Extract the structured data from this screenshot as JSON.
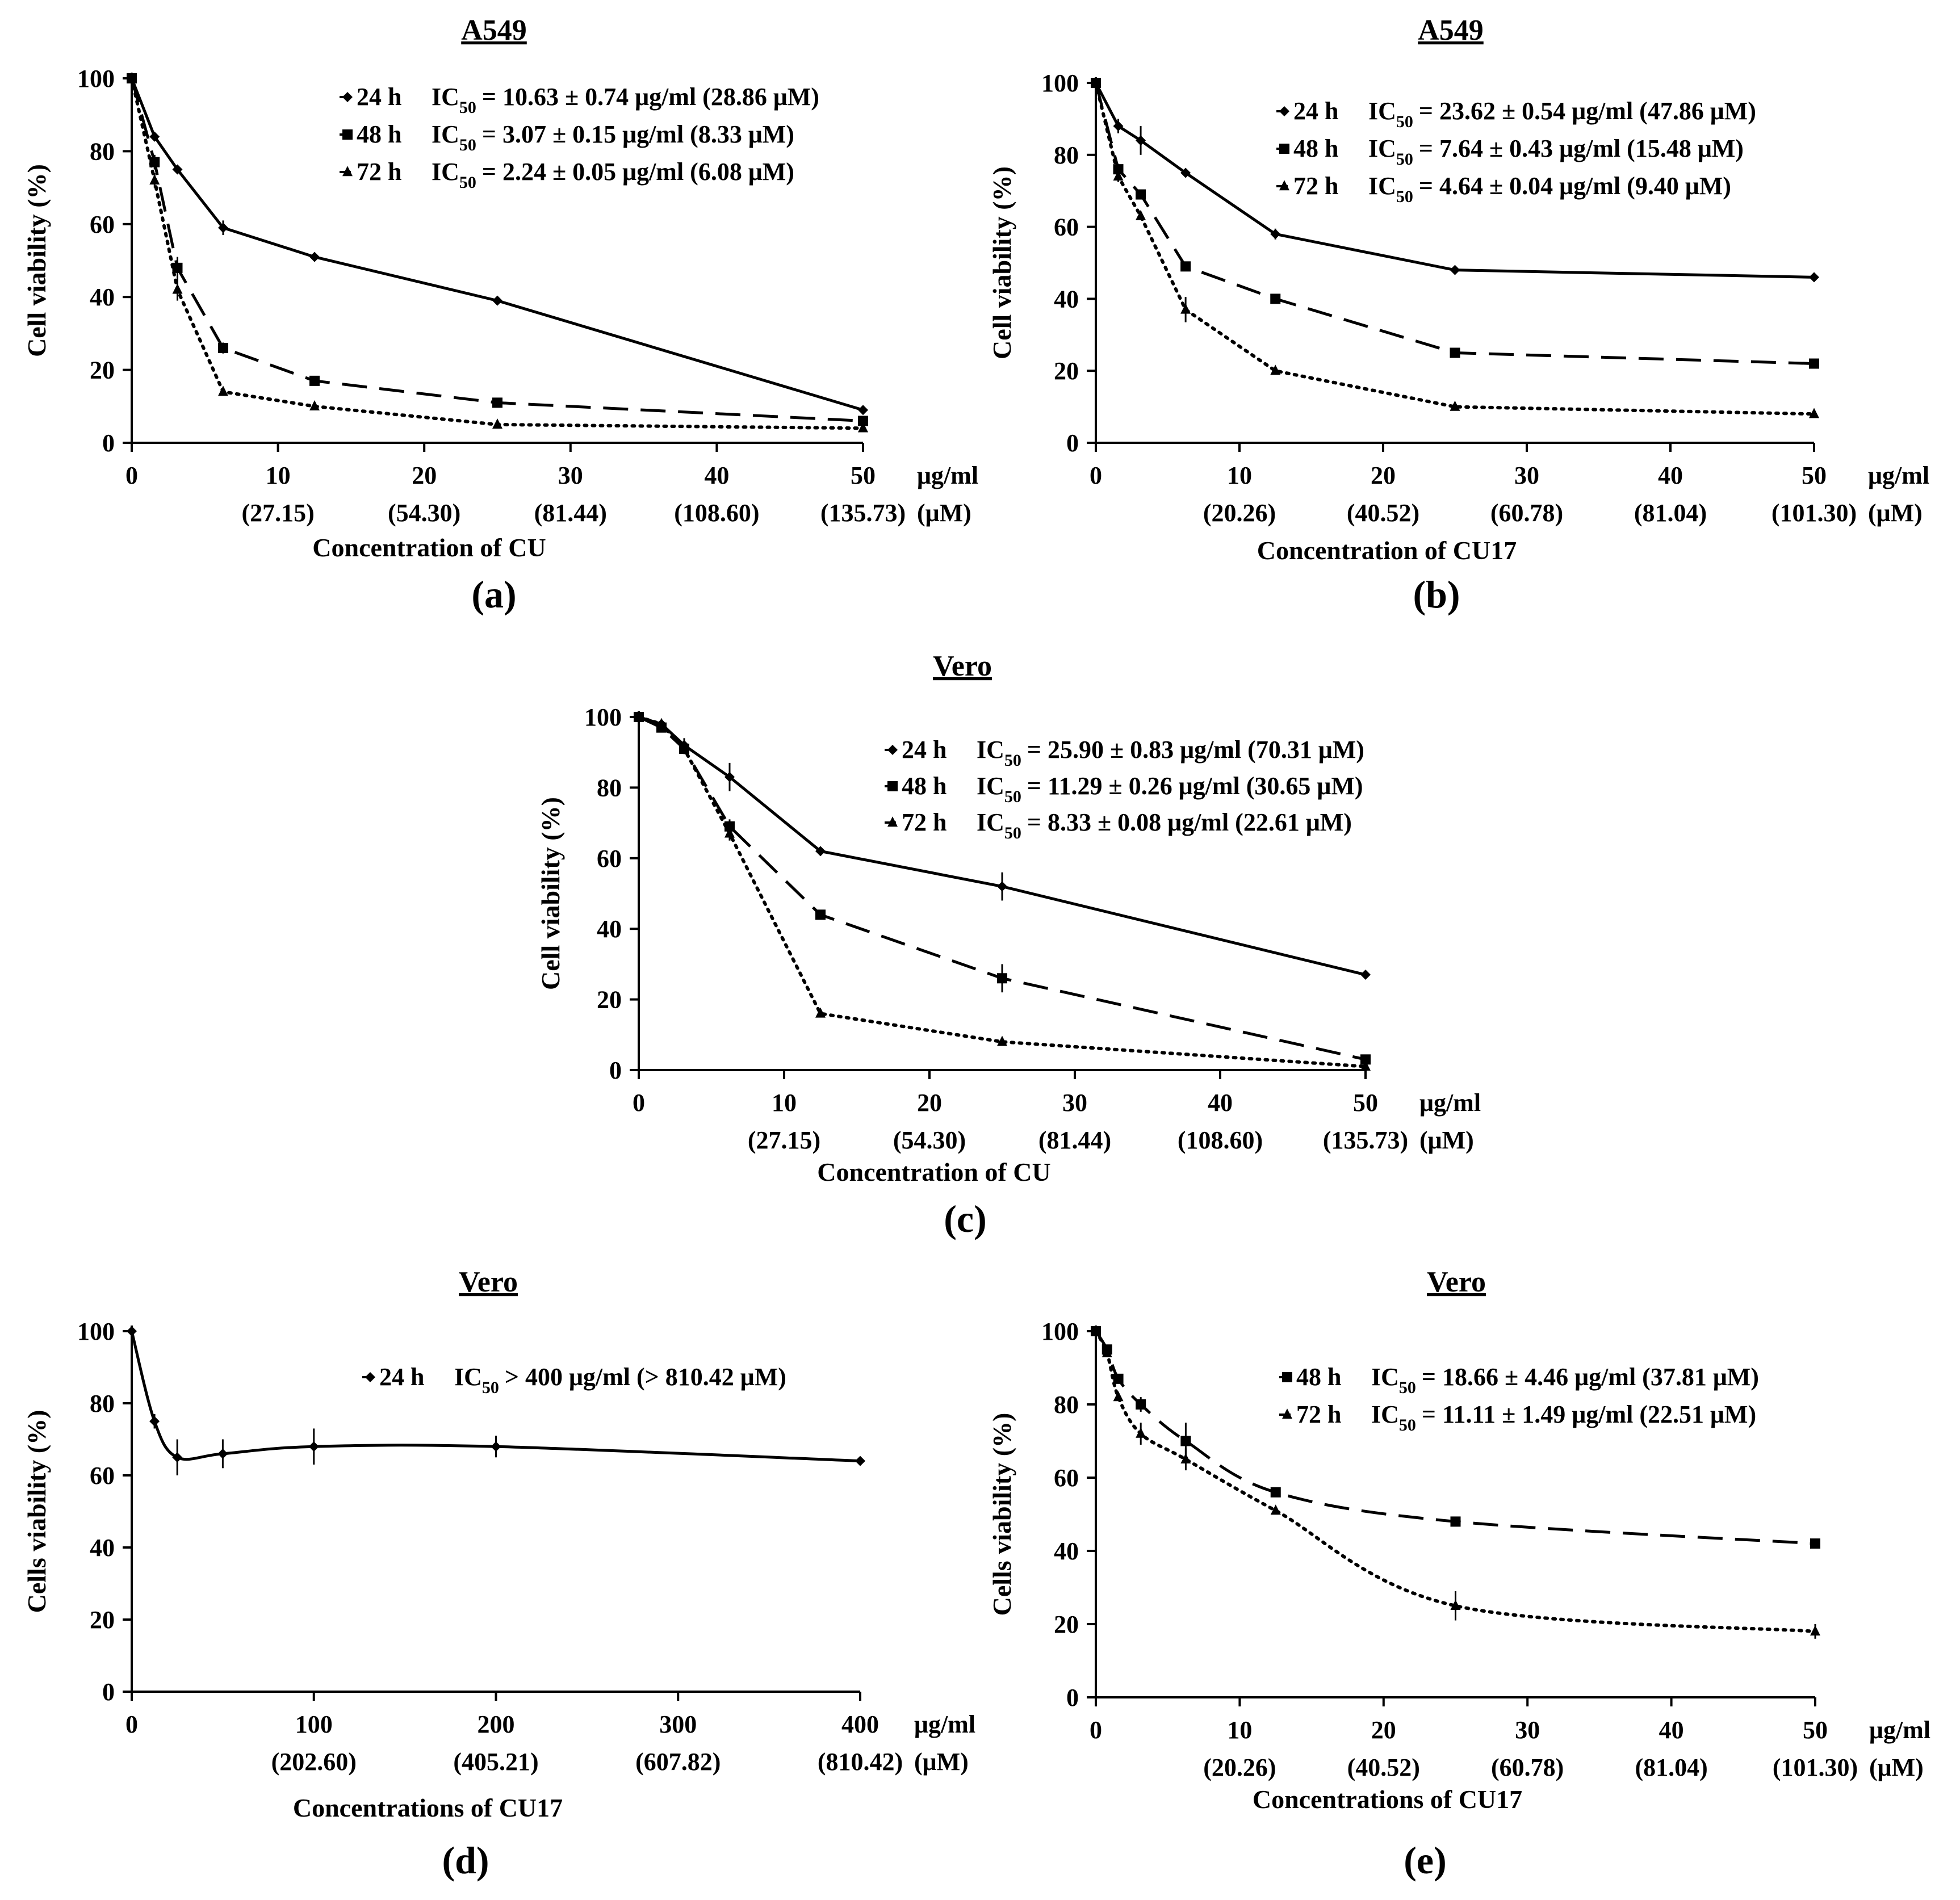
{
  "figure": "Cell viability dose-response panels",
  "chart_data": [
    {
      "id": "a",
      "type": "line",
      "panel_label": "(a)",
      "title": "A549",
      "ylabel": "Cell  viability (%)",
      "xlabel": "Concentration of CU",
      "ylim": [
        0,
        100
      ],
      "xlim": [
        0,
        50
      ],
      "yticks": [
        0,
        20,
        40,
        60,
        80,
        100
      ],
      "xticks": [
        0,
        10,
        20,
        30,
        40,
        50
      ],
      "x_unit": "μg/ml",
      "x_unit2": "(μM)",
      "xticks_molar": [
        {
          "x": 10,
          "label": "(27.15)"
        },
        {
          "x": 20,
          "label": "(54.30)"
        },
        {
          "x": 30,
          "label": "(81.44)"
        },
        {
          "x": 40,
          "label": "(108.60)"
        },
        {
          "x": 50,
          "label": "(135.73)"
        }
      ],
      "series": [
        {
          "name": "24 h",
          "ic50_pre": "IC",
          "ic50_sub": "50",
          "ic50_text": "= 10.63 ± 0.74 μg/ml (28.86 μM)",
          "style": "solid",
          "marker": "diamond",
          "x": [
            0,
            1.5625,
            3.125,
            6.25,
            12.5,
            25,
            50
          ],
          "y": [
            100,
            84,
            75,
            59,
            51,
            39,
            9
          ],
          "err": [
            0,
            1,
            1,
            2,
            1,
            0.5,
            0.5
          ]
        },
        {
          "name": "48 h",
          "ic50_pre": "IC",
          "ic50_sub": "50",
          "ic50_text": "= 3.07 ± 0.15 μg/ml   (8.33 μM)",
          "style": "dashed",
          "marker": "square",
          "x": [
            0,
            1.5625,
            3.125,
            6.25,
            12.5,
            25,
            50
          ],
          "y": [
            100,
            77,
            48,
            26,
            17,
            11,
            6
          ],
          "err": [
            0,
            2,
            3,
            1.5,
            0.5,
            0.5,
            0.5
          ]
        },
        {
          "name": "72 h",
          "ic50_pre": "IC",
          "ic50_sub": "50",
          "ic50_text": "= 2.24 ± 0.05 μg/ml   (6.08 μM)",
          "style": "dotted",
          "marker": "triangle",
          "x": [
            0,
            1.5625,
            3.125,
            6.25,
            12.5,
            25,
            50
          ],
          "y": [
            100,
            72,
            42,
            14,
            10,
            5,
            4
          ],
          "err": [
            0,
            2,
            3,
            1,
            0.5,
            0.5,
            0.5
          ]
        }
      ]
    },
    {
      "id": "b",
      "type": "line",
      "panel_label": "(b)",
      "title": "A549",
      "ylabel": "Cell  viability (%)",
      "xlabel": "Concentration of CU17",
      "ylim": [
        0,
        100
      ],
      "xlim": [
        0,
        50
      ],
      "yticks": [
        0,
        20,
        40,
        60,
        80,
        100
      ],
      "xticks": [
        0,
        10,
        20,
        30,
        40,
        50
      ],
      "x_unit": "μg/ml",
      "x_unit2": "(μM)",
      "xticks_molar": [
        {
          "x": 10,
          "label": "(20.26)"
        },
        {
          "x": 20,
          "label": "(40.52)"
        },
        {
          "x": 30,
          "label": "(60.78)"
        },
        {
          "x": 40,
          "label": "(81.04)"
        },
        {
          "x": 50,
          "label": "(101.30)"
        }
      ],
      "series": [
        {
          "name": "24 h",
          "ic50_pre": "IC",
          "ic50_sub": "50",
          "ic50_text": "= 23.62 ± 0.54 μg/ml (47.86 μM)",
          "style": "solid",
          "marker": "diamond",
          "x": [
            0,
            1.5625,
            3.125,
            6.25,
            12.5,
            25,
            50
          ],
          "y": [
            100,
            88,
            84,
            75,
            58,
            48,
            46
          ],
          "err": [
            0,
            2,
            4,
            1,
            1.5,
            0.5,
            0.5
          ]
        },
        {
          "name": "48 h",
          "ic50_pre": "IC",
          "ic50_sub": "50",
          "ic50_text": "= 7.64 ± 0.43 μg/ml   (15.48 μM)",
          "style": "dashed",
          "marker": "square",
          "x": [
            0,
            1.5625,
            3.125,
            6.25,
            12.5,
            25,
            50
          ],
          "y": [
            100,
            76,
            69,
            49,
            40,
            25,
            22
          ],
          "err": [
            0,
            1.5,
            1,
            1,
            0.5,
            0.5,
            0.5
          ]
        },
        {
          "name": "72 h",
          "ic50_pre": "IC",
          "ic50_sub": "50",
          "ic50_text": "= 4.64 ± 0.04 μg/ml   (9.40 μM)",
          "style": "dotted",
          "marker": "triangle",
          "x": [
            0,
            1.5625,
            3.125,
            6.25,
            12.5,
            25,
            50
          ],
          "y": [
            100,
            74,
            63,
            37,
            20,
            10,
            8
          ],
          "err": [
            0,
            1.5,
            1,
            3.5,
            0.5,
            0.5,
            0.5
          ]
        }
      ]
    },
    {
      "id": "c",
      "type": "line",
      "panel_label": "(c)",
      "title": "Vero",
      "ylabel": "Cell  viability (%)",
      "xlabel": "Concentration of CU",
      "ylim": [
        0,
        100
      ],
      "xlim": [
        0,
        50
      ],
      "yticks": [
        0,
        20,
        40,
        60,
        80,
        100
      ],
      "xticks": [
        0,
        10,
        20,
        30,
        40,
        50
      ],
      "x_unit": "μg/ml",
      "x_unit2": "(μM)",
      "xticks_molar": [
        {
          "x": 10,
          "label": "(27.15)"
        },
        {
          "x": 20,
          "label": "(54.30)"
        },
        {
          "x": 30,
          "label": "(81.44)"
        },
        {
          "x": 40,
          "label": "(108.60)"
        },
        {
          "x": 50,
          "label": "(135.73)"
        }
      ],
      "series": [
        {
          "name": "24 h",
          "ic50_pre": "IC",
          "ic50_sub": "50",
          "ic50_text": "= 25.90 ± 0.83 μg/ml (70.31 μM)",
          "style": "solid",
          "marker": "diamond",
          "x": [
            0,
            1.5625,
            3.125,
            6.25,
            12.5,
            25,
            50
          ],
          "y": [
            100,
            98,
            92,
            83,
            62,
            52,
            27
          ],
          "err": [
            0,
            1,
            2,
            4,
            1,
            4,
            0.5
          ]
        },
        {
          "name": "48 h",
          "ic50_pre": "IC",
          "ic50_sub": "50",
          "ic50_text": "= 11.29 ± 0.26 μg/ml (30.65 μM)",
          "style": "dashed",
          "marker": "square",
          "x": [
            0,
            1.5625,
            3.125,
            6.25,
            12.5,
            25,
            50
          ],
          "y": [
            100,
            97,
            91,
            69,
            44,
            26,
            3
          ],
          "err": [
            0,
            1,
            1.5,
            2,
            1,
            4,
            0.5
          ]
        },
        {
          "name": "72 h",
          "ic50_pre": "IC",
          "ic50_sub": "50",
          "ic50_text": "= 8.33 ± 0.08 μg/ml    (22.61 μM)",
          "style": "dotted",
          "marker": "triangle",
          "x": [
            0,
            1.5625,
            3.125,
            6.25,
            12.5,
            25,
            50
          ],
          "y": [
            100,
            98,
            91,
            67,
            16,
            8,
            1
          ],
          "err": [
            0,
            1,
            1.5,
            2,
            0.5,
            0.5,
            0.5
          ]
        }
      ]
    },
    {
      "id": "d",
      "type": "line",
      "panel_label": "(d)",
      "title": "Vero",
      "ylabel": "Cells viability (%)",
      "xlabel": "Concentrations of CU17",
      "ylim": [
        0,
        100
      ],
      "xlim": [
        0,
        400
      ],
      "yticks": [
        0,
        20,
        40,
        60,
        80,
        100
      ],
      "xticks": [
        0,
        100,
        200,
        300,
        400
      ],
      "x_unit": "μg/ml",
      "x_unit2": "(μM)",
      "xticks_molar": [
        {
          "x": 100,
          "label": "(202.60)"
        },
        {
          "x": 200,
          "label": "(405.21)"
        },
        {
          "x": 300,
          "label": "(607.82)"
        },
        {
          "x": 400,
          "label": "(810.42)"
        }
      ],
      "series": [
        {
          "name": "24 h",
          "ic50_pre": "IC",
          "ic50_sub": "50",
          "ic50_text": "> 400 μg/ml (> 810.42 μM)",
          "style": "solid-smooth",
          "marker": "diamond",
          "x": [
            0,
            12.5,
            25,
            50,
            100,
            200,
            400
          ],
          "y": [
            100,
            75,
            65,
            66,
            68,
            68,
            64
          ],
          "err": [
            0,
            2,
            5,
            4,
            5,
            3,
            0.5
          ]
        }
      ]
    },
    {
      "id": "e",
      "type": "line",
      "panel_label": "(e)",
      "title": "Vero",
      "ylabel": "Cells viability (%)",
      "xlabel": "Concentrations of CU17",
      "ylim": [
        0,
        100
      ],
      "xlim": [
        0,
        50
      ],
      "yticks": [
        0,
        20,
        40,
        60,
        80,
        100
      ],
      "xticks": [
        0,
        10,
        20,
        30,
        40,
        50
      ],
      "x_unit": "μg/ml",
      "x_unit2": "(μM)",
      "xticks_molar": [
        {
          "x": 10,
          "label": "(20.26)"
        },
        {
          "x": 20,
          "label": "(40.52)"
        },
        {
          "x": 30,
          "label": "(60.78)"
        },
        {
          "x": 40,
          "label": "(81.04)"
        },
        {
          "x": 50,
          "label": "(101.30)"
        }
      ],
      "series": [
        {
          "name": "48 h",
          "ic50_pre": "IC",
          "ic50_sub": "50",
          "ic50_text": "= 18.66 ± 4.46 μg/ml (37.81 μM)",
          "style": "dashed-smooth",
          "marker": "square",
          "x": [
            0,
            0.78,
            1.5625,
            3.125,
            6.25,
            12.5,
            25,
            50
          ],
          "y": [
            100,
            95,
            87,
            80,
            70,
            56,
            48,
            42
          ],
          "err": [
            0,
            1,
            1,
            2,
            5,
            1,
            1,
            1
          ]
        },
        {
          "name": "72 h",
          "ic50_pre": "IC",
          "ic50_sub": "50",
          "ic50_text": "= 11.11 ± 1.49 μg/ml (22.51 μM)",
          "style": "dotted-smooth",
          "marker": "triangle",
          "x": [
            0,
            0.78,
            1.5625,
            3.125,
            6.25,
            12.5,
            25,
            50
          ],
          "y": [
            100,
            94,
            82,
            72,
            65,
            51,
            25,
            18
          ],
          "err": [
            0,
            1,
            1,
            3,
            3,
            1,
            4,
            2
          ]
        }
      ]
    }
  ]
}
